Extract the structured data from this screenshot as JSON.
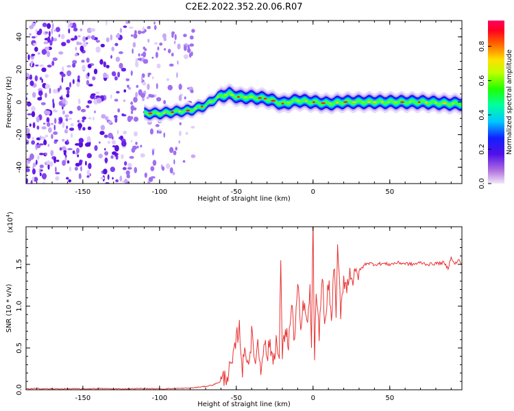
{
  "chart_data": [
    {
      "type": "heatmap",
      "title": "C2E2.2022.352.20.06.R07",
      "xlabel": "Height of straight line (km)",
      "ylabel": "Frequency (Hz)",
      "xlim": [
        -187,
        97
      ],
      "ylim": [
        -50,
        50
      ],
      "xticks": [
        -150,
        -100,
        -50,
        0,
        50
      ],
      "yticks": [
        -40,
        -20,
        0,
        20,
        40
      ],
      "noise_region_end_km": -78,
      "ridge_start_km": -110,
      "ridge": [
        {
          "x": -110,
          "f": -7
        },
        {
          "x": -100,
          "f": -7
        },
        {
          "x": -90,
          "f": -6
        },
        {
          "x": -80,
          "f": -5
        },
        {
          "x": -70,
          "f": -2
        },
        {
          "x": -62,
          "f": 3
        },
        {
          "x": -55,
          "f": 5
        },
        {
          "x": -48,
          "f": 3
        },
        {
          "x": -40,
          "f": 3
        },
        {
          "x": -30,
          "f": 2
        },
        {
          "x": -20,
          "f": -1
        },
        {
          "x": -10,
          "f": 1
        },
        {
          "x": 0,
          "f": 0
        },
        {
          "x": 10,
          "f": -1
        },
        {
          "x": 20,
          "f": 0
        },
        {
          "x": 30,
          "f": 0
        },
        {
          "x": 50,
          "f": 0
        },
        {
          "x": 70,
          "f": 0
        },
        {
          "x": 90,
          "f": -1
        },
        {
          "x": 97,
          "f": -1
        }
      ],
      "colorbar": {
        "label": "Normalized spectral amplitude",
        "min": 0.0,
        "max": 0.95,
        "ticks": [
          "0.0",
          "0.2",
          "0.4",
          "0.6",
          "0.8"
        ]
      }
    },
    {
      "type": "line",
      "xlabel": "Height of straight line (km)",
      "ylabel": "SNR (10 * v/v)",
      "exponent_label": "(x10",
      "exponent_power": "4",
      "exponent_close": ")",
      "xlim": [
        -187,
        97
      ],
      "ylim": [
        0,
        1.95
      ],
      "xticks": [
        -150,
        -100,
        -50,
        0,
        50
      ],
      "yticks": [
        0.0,
        0.5,
        1.0,
        1.5
      ],
      "ytick_labels": [
        "0.0",
        "0.5",
        "1.0",
        "1.5"
      ],
      "color": "#e83030",
      "x": [
        -187,
        -180,
        -170,
        -160,
        -150,
        -140,
        -130,
        -120,
        -110,
        -100,
        -90,
        -80,
        -75,
        -70,
        -65,
        -60,
        -55,
        -52,
        -50,
        -48,
        -46,
        -44,
        -42,
        -40,
        -38,
        -36,
        -34,
        -32,
        -30,
        -28,
        -26,
        -24,
        -22,
        -21,
        -20,
        -18,
        -16,
        -14,
        -12,
        -10,
        -8,
        -6,
        -4,
        -2,
        -1,
        0,
        1,
        2,
        4,
        6,
        8,
        10,
        12,
        14,
        15,
        16,
        18,
        20,
        22,
        24,
        26,
        28,
        30,
        35,
        40,
        45,
        50,
        55,
        60,
        65,
        70,
        75,
        80,
        85,
        88,
        90,
        92,
        95,
        97
      ],
      "values": [
        0.01,
        0.015,
        0.01,
        0.012,
        0.01,
        0.015,
        0.01,
        0.012,
        0.015,
        0.01,
        0.015,
        0.02,
        0.03,
        0.04,
        0.06,
        0.1,
        0.2,
        0.35,
        0.6,
        0.75,
        0.25,
        0.5,
        0.3,
        0.65,
        0.35,
        0.55,
        0.25,
        0.6,
        0.4,
        0.55,
        0.35,
        0.6,
        0.3,
        1.6,
        0.4,
        0.75,
        0.55,
        1.0,
        0.6,
        1.25,
        0.7,
        1.05,
        0.75,
        1.15,
        0.6,
        1.95,
        0.35,
        1.05,
        0.7,
        1.35,
        0.75,
        1.3,
        0.85,
        1.55,
        0.75,
        1.7,
        0.95,
        1.35,
        1.2,
        1.45,
        1.3,
        1.38,
        1.42,
        1.52,
        1.5,
        1.51,
        1.5,
        1.52,
        1.51,
        1.5,
        1.52,
        1.5,
        1.51,
        1.52,
        1.45,
        1.6,
        1.5,
        1.55,
        1.5
      ]
    }
  ]
}
